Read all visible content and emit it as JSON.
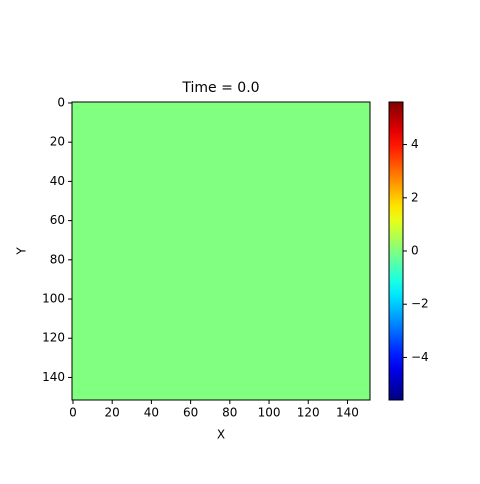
{
  "chart_data": {
    "type": "heatmap",
    "title": "Time = 0.0",
    "x_label": "X",
    "y_label": "Y",
    "values": [
      [
        0
      ]
    ],
    "colormap": "jet",
    "xlim": [
      -0.5,
      151.5
    ],
    "ylim": [
      151.5,
      -0.5
    ],
    "xticks": [
      0,
      20,
      40,
      60,
      80,
      100,
      120,
      140
    ],
    "yticks": [
      0,
      20,
      40,
      60,
      80,
      100,
      120,
      140
    ],
    "clim": [
      -5.6,
      5.6
    ],
    "cticks": [
      {
        "value": -4,
        "label": "−4"
      },
      {
        "value": -2,
        "label": "−2"
      },
      0,
      2,
      4
    ]
  }
}
